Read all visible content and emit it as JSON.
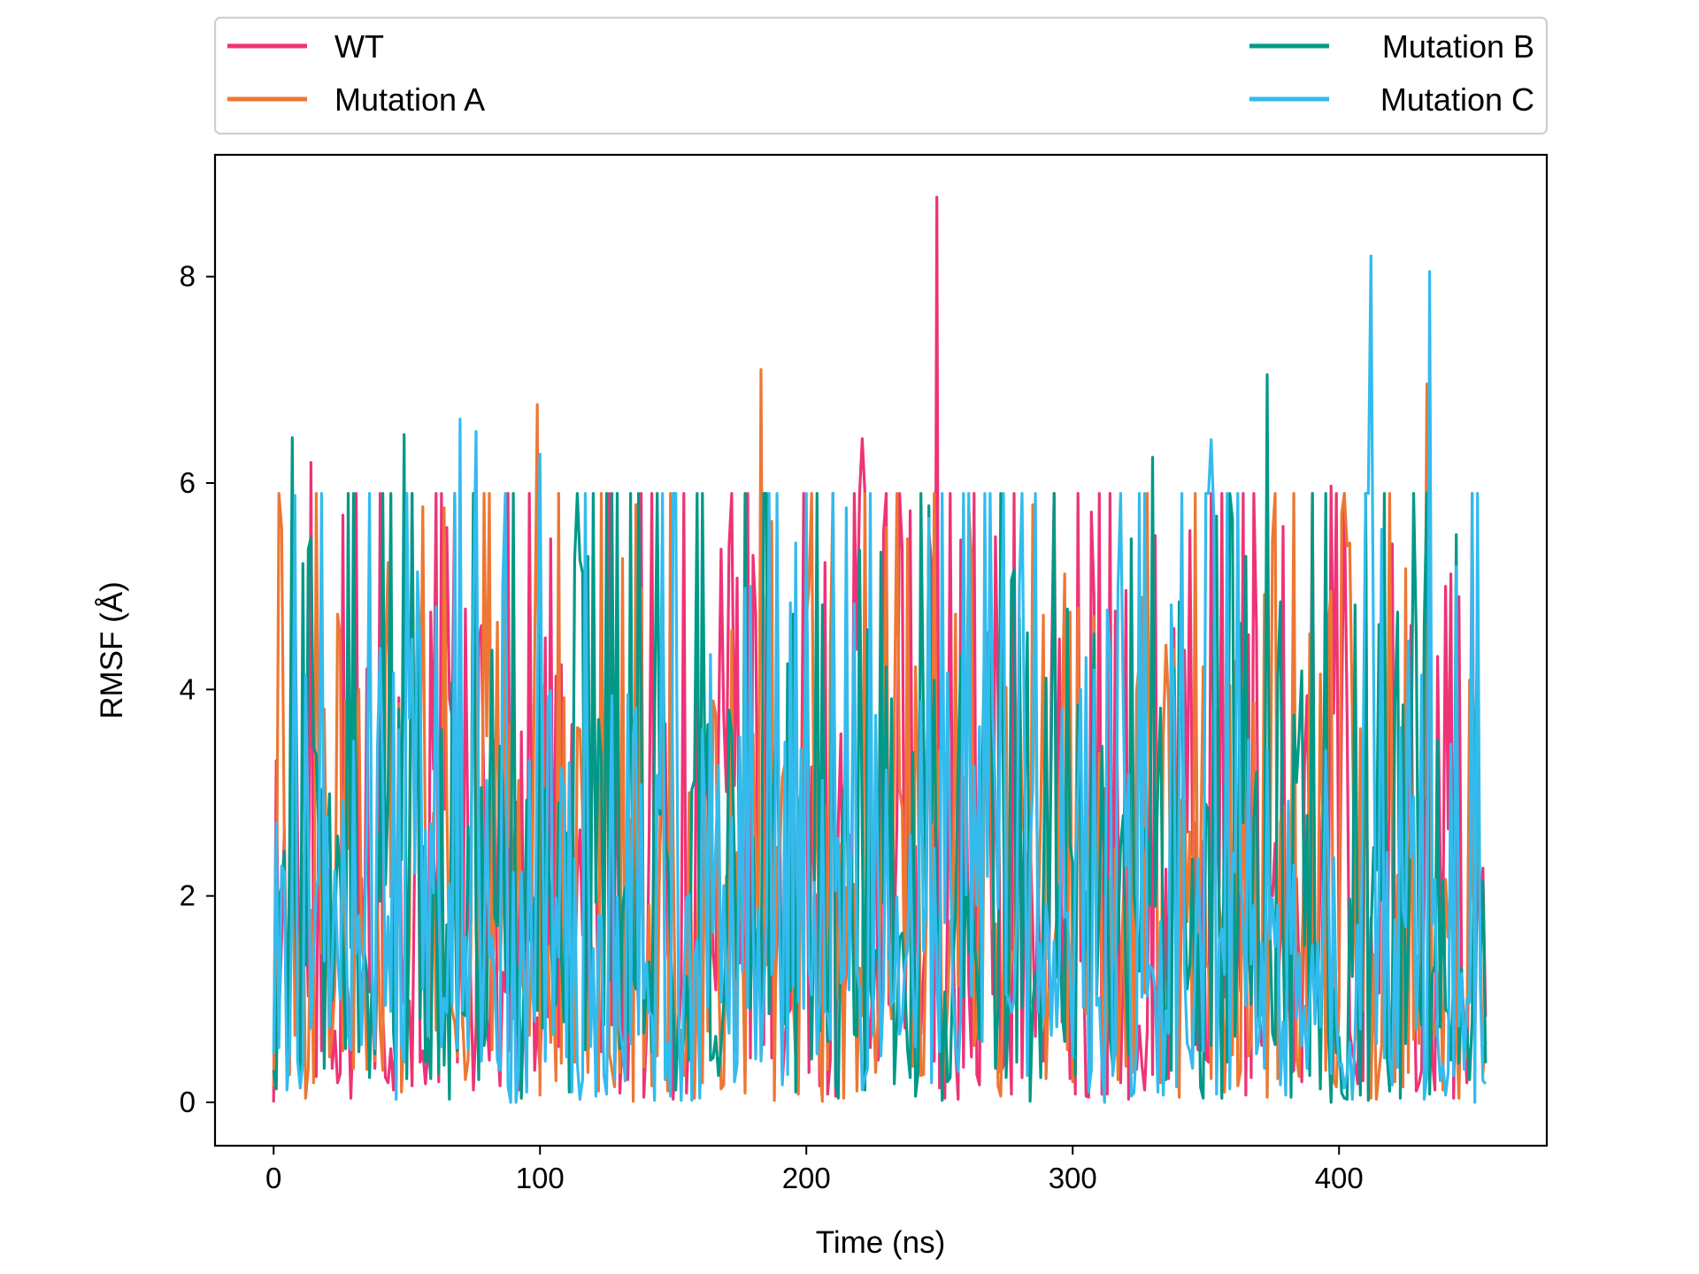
{
  "chart_data": {
    "type": "line",
    "title": "",
    "xlabel": "Time (ns)",
    "ylabel": "RMSF (Å)",
    "xlim": [
      -22,
      478
    ],
    "ylim": [
      -0.42,
      9.18
    ],
    "xticks": [
      0,
      100,
      200,
      300,
      400
    ],
    "yticks": [
      0,
      2,
      4,
      6,
      8
    ],
    "x_range": [
      0,
      455
    ],
    "legend": {
      "placement": "top-outside",
      "columns": 2,
      "frame": true
    },
    "grid": false,
    "series": [
      {
        "name": "WT",
        "color": "#EE3377",
        "mean": 2.4,
        "peaks": [
          [
            249,
            8.77
          ],
          [
            14,
            6.2
          ],
          [
            221,
            6.43
          ],
          [
            397,
            5.97
          ],
          [
            433,
            5.7
          ]
        ],
        "values": []
      },
      {
        "name": "Mutation A",
        "color": "#EE7733",
        "mean": 2.4,
        "peaks": [
          [
            183,
            7.1
          ],
          [
            99,
            6.76
          ],
          [
            433,
            6.96
          ],
          [
            3,
            5.56
          ],
          [
            123,
            5.9
          ]
        ],
        "values": []
      },
      {
        "name": "Mutation B",
        "color": "#009988",
        "mean": 2.4,
        "peaks": [
          [
            373,
            7.05
          ],
          [
            7,
            6.44
          ],
          [
            49,
            6.47
          ],
          [
            330,
            6.25
          ],
          [
            444,
            5.5
          ]
        ],
        "values": []
      },
      {
        "name": "Mutation C",
        "color": "#33BBEE",
        "mean": 2.3,
        "peaks": [
          [
            412,
            8.2
          ],
          [
            434,
            8.05
          ],
          [
            70,
            6.62
          ],
          [
            76,
            6.5
          ],
          [
            100,
            6.28
          ],
          [
            352,
            6.42
          ]
        ],
        "values": []
      }
    ]
  }
}
